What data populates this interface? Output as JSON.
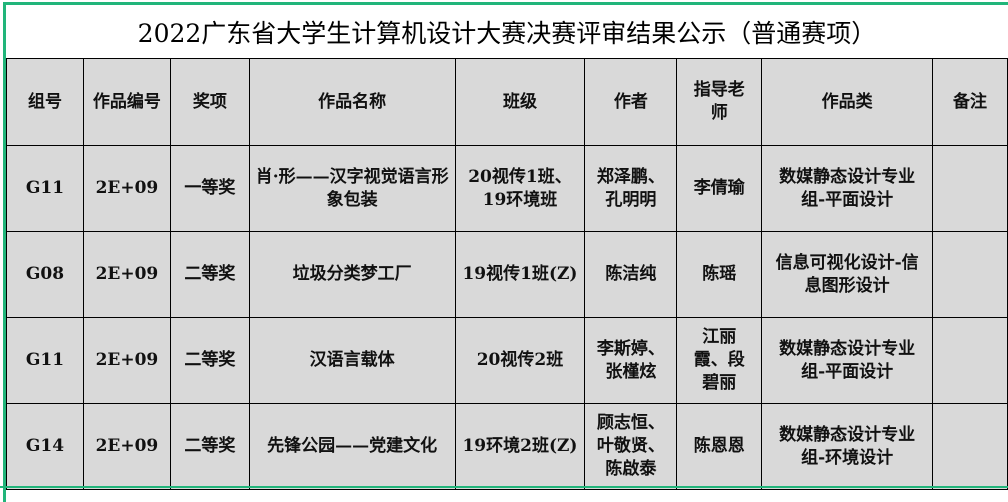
{
  "title": "2022广东省大学生计算机设计大赛决赛评审结果公示（普通赛项）",
  "headers": [
    "组号",
    "作品编号",
    "奖项",
    "作品名称",
    "班级",
    "作者",
    "指导老师",
    "作品类",
    "备注"
  ],
  "rows": [
    [
      "G11",
      "2E+09",
      "一等奖",
      "肖·形——汉字视觉语言形象包装",
      "20视传1班、19环境班",
      "郑泽鹏、孔明明",
      "李倩瑜",
      "数媒静态设计专业组-平面设计",
      ""
    ],
    [
      "G08",
      "2E+09",
      "二等奖",
      "垃圾分类梦工厂",
      "19视传1班(Z)",
      "陈洁纯",
      "陈瑶",
      "信息可视化设计-信息图形设计",
      ""
    ],
    [
      "G11",
      "2E+09",
      "二等奖",
      "汉语言载体",
      "20视传2班",
      "李斯婷、张槿炫",
      "江丽霞、段碧丽",
      "数媒静态设计专业组-平面设计",
      ""
    ],
    [
      "G14",
      "2E+09",
      "二等奖",
      "先锋公园——党建文化",
      "19环境2班(Z)",
      "顾志恒、叶敬贤、陈啟泰",
      "陈恩恩",
      "数媒静态设计专业组-环境设计",
      ""
    ]
  ],
  "colors": {
    "border_accent": "#21b57a",
    "cell_bg": "#d9d9d9"
  }
}
